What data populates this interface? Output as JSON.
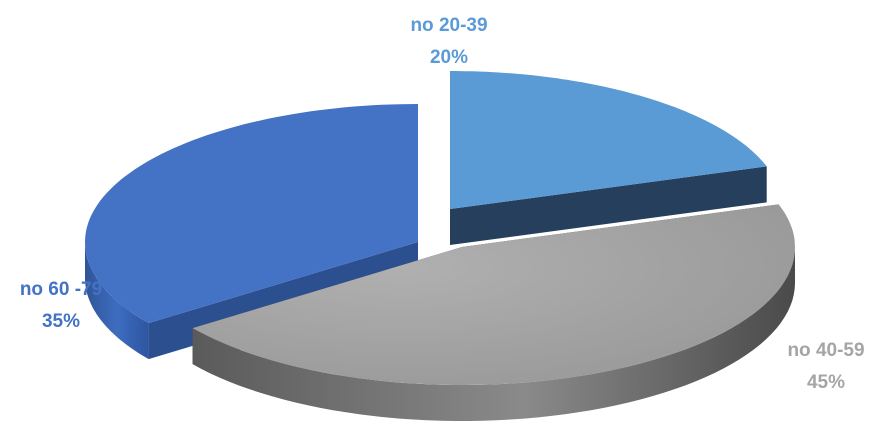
{
  "chart_data": {
    "type": "pie",
    "title": "",
    "style": "3d-exploded",
    "slices": [
      {
        "label": "no 20-39",
        "value": 20,
        "percent_label": "20%",
        "color": "#5B9BD5"
      },
      {
        "label": "no 40-59",
        "value": 45,
        "percent_label": "45%",
        "color": "#A5A5A5"
      },
      {
        "label": "no 60 -79",
        "value": 35,
        "percent_label": "35%",
        "color": "#4472C4"
      }
    ]
  }
}
